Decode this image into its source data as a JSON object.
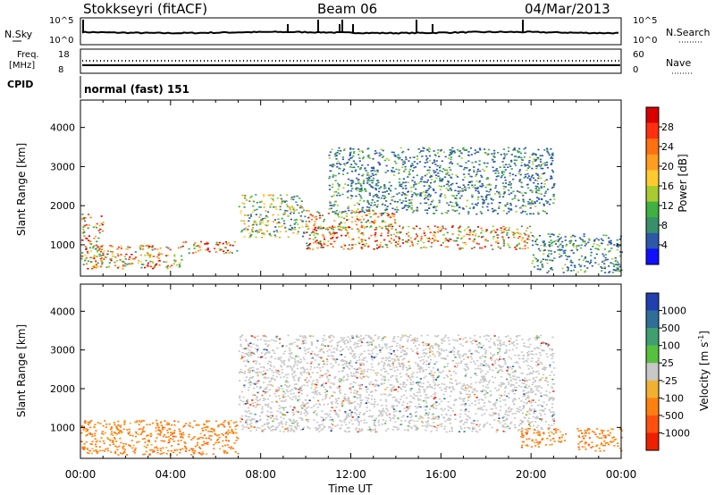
{
  "header": {
    "station": "Stokkseyri (fitACF)",
    "beam": "Beam 06",
    "date": "04/Mar/2013"
  },
  "nsky_panel": {
    "label": "N.Sky",
    "ticks_left": [
      "10^5",
      "10^0"
    ],
    "ticks_right": [
      "10^5",
      "10^0"
    ],
    "right_label": "N.Search"
  },
  "freq_panel": {
    "label_line1": "Freq.",
    "label_line2": "[MHz]",
    "ticks_left": [
      "18",
      "8"
    ],
    "ticks_right": [
      "60",
      "0"
    ],
    "right_label": "Nave"
  },
  "cpid": {
    "label": "CPID",
    "mode": "normal (fast) 151"
  },
  "power_scale": {
    "title": "Power [dB]",
    "labels": [
      "28",
      "24",
      "20",
      "16",
      "12",
      "8",
      "4"
    ],
    "colors": [
      "#d80000",
      "#ff3010",
      "#ff7010",
      "#ff9d20",
      "#ffcc30",
      "#a8cc30",
      "#40b040",
      "#38906a",
      "#2c58a8",
      "#1010ff"
    ]
  },
  "velocity_scale": {
    "title": "Velocity [m s",
    "title_sup": "-1",
    "title_end": "]",
    "labels": [
      "1000",
      "500",
      "100",
      "25",
      "-25",
      "-100",
      "-500",
      "-1000"
    ],
    "colors": [
      "#2040b0",
      "#2f6e98",
      "#3ea070",
      "#58c040",
      "#c8c8c8",
      "#f0b030",
      "#ff8010",
      "#ff5010",
      "#ee2000"
    ]
  },
  "chart_data": [
    {
      "type": "heatmap",
      "title": "Power",
      "ylabel": "Slant Range [km]",
      "yticks": [
        "4000",
        "3000",
        "2000",
        "1000"
      ],
      "ylim": [
        200,
        4700
      ],
      "xlim": [
        0,
        24
      ],
      "regions": [
        {
          "t0": 0.0,
          "t1": 1.0,
          "r0": 400,
          "r1": 1800,
          "level": "high"
        },
        {
          "t0": 0.5,
          "t1": 4.5,
          "r0": 400,
          "r1": 1000,
          "level": "high"
        },
        {
          "t0": 4.5,
          "t1": 7.0,
          "r0": 800,
          "r1": 1100,
          "level": "high"
        },
        {
          "t0": 7.0,
          "t1": 10.0,
          "r0": 1200,
          "r1": 2300,
          "level": "mid"
        },
        {
          "t0": 10.0,
          "t1": 20.0,
          "r0": 900,
          "r1": 1500,
          "level": "high"
        },
        {
          "t0": 10.0,
          "t1": 14.0,
          "r0": 1400,
          "r1": 1900,
          "level": "high"
        },
        {
          "t0": 11.0,
          "t1": 21.0,
          "r0": 1800,
          "r1": 3500,
          "level": "low"
        },
        {
          "t0": 20.0,
          "t1": 24.0,
          "r0": 300,
          "r1": 1300,
          "level": "low"
        }
      ]
    },
    {
      "type": "heatmap",
      "title": "Velocity",
      "ylabel": "Slant Range [km]",
      "yticks": [
        "4000",
        "3000",
        "2000",
        "1000"
      ],
      "xticks": [
        "00:00",
        "04:00",
        "08:00",
        "12:00",
        "16:00",
        "20:00",
        "00:00"
      ],
      "xlabel": "Time UT",
      "ylim": [
        200,
        4700
      ],
      "xlim": [
        0,
        24
      ],
      "regions": [
        {
          "t0": 0.0,
          "t1": 7.0,
          "r0": 300,
          "r1": 1200,
          "velocity": "-500"
        },
        {
          "t0": 7.0,
          "t1": 21.0,
          "r0": 900,
          "r1": 3400,
          "velocity": "~0"
        },
        {
          "t0": 19.5,
          "t1": 21.5,
          "r0": 500,
          "r1": 1000,
          "velocity": "-500"
        },
        {
          "t0": 22.0,
          "t1": 24.0,
          "r0": 400,
          "r1": 1000,
          "velocity": "-500"
        }
      ]
    }
  ],
  "xaxis": {
    "ticks": [
      "00:00",
      "04:00",
      "08:00",
      "12:00",
      "16:00",
      "20:00",
      "00:00"
    ],
    "label": "Time UT"
  }
}
